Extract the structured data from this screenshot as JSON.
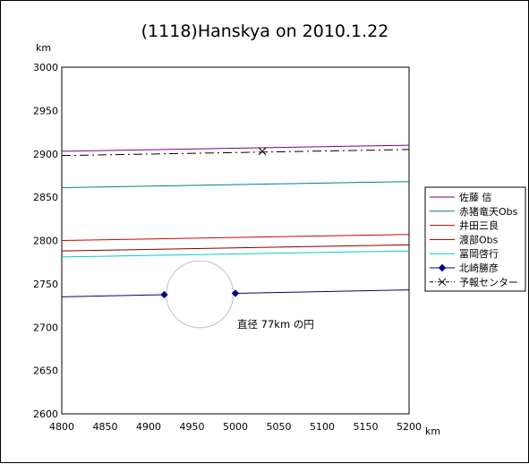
{
  "chart_data": {
    "type": "line",
    "title": "(1118)Hanskya on 2010.1.22",
    "xlabel": "km",
    "ylabel": "km",
    "xlim": [
      4800,
      5200
    ],
    "ylim": [
      2600,
      3000
    ],
    "xticks": [
      4800,
      4850,
      4900,
      4950,
      5000,
      5050,
      5100,
      5150,
      5200
    ],
    "yticks": [
      2600,
      2650,
      2700,
      2750,
      2800,
      2850,
      2900,
      2950,
      3000
    ],
    "grid": false,
    "legend": "right",
    "series": [
      {
        "name": "佐藤 信",
        "color": "#800080",
        "style": "solid",
        "marker": "none",
        "points": [
          [
            4800,
            2903
          ],
          [
            5200,
            2910
          ]
        ]
      },
      {
        "name": "赤猪竜天Obs",
        "color": "#008080",
        "style": "solid",
        "marker": "none",
        "points": [
          [
            4800,
            2861
          ],
          [
            5200,
            2868
          ]
        ]
      },
      {
        "name": "井田三良",
        "color": "#d00000",
        "style": "solid",
        "marker": "none",
        "points": [
          [
            4800,
            2800
          ],
          [
            5200,
            2807
          ]
        ]
      },
      {
        "name": "渡部Obs",
        "color": "#800000",
        "style": "solid",
        "marker": "none",
        "points": [
          [
            4800,
            2788
          ],
          [
            5200,
            2795
          ]
        ]
      },
      {
        "name": "冨岡啓行",
        "color": "#00cccc",
        "style": "solid",
        "marker": "none",
        "points": [
          [
            4800,
            2781
          ],
          [
            5200,
            2788
          ]
        ]
      },
      {
        "name": "北崎勝彦",
        "color": "#000080",
        "style": "solid",
        "marker": "diamond",
        "points": [
          [
            4800,
            2735
          ],
          [
            4918,
            2737.5
          ]
        ],
        "points2": [
          [
            5000,
            2739
          ],
          [
            5200,
            2743
          ]
        ]
      },
      {
        "name": "予報センター",
        "color": "#000000",
        "style": "dashdot",
        "marker": "x",
        "points": [
          [
            4800,
            2898
          ],
          [
            5200,
            2905
          ]
        ],
        "marker_at": [
          5031,
          2903
        ]
      }
    ],
    "circle": {
      "cx": 4959,
      "cy": 2738,
      "r": 38.5,
      "color": "#c0c0c0"
    },
    "annotation": {
      "text": "直径 77km の円",
      "x": 5005,
      "y": 2702
    }
  }
}
